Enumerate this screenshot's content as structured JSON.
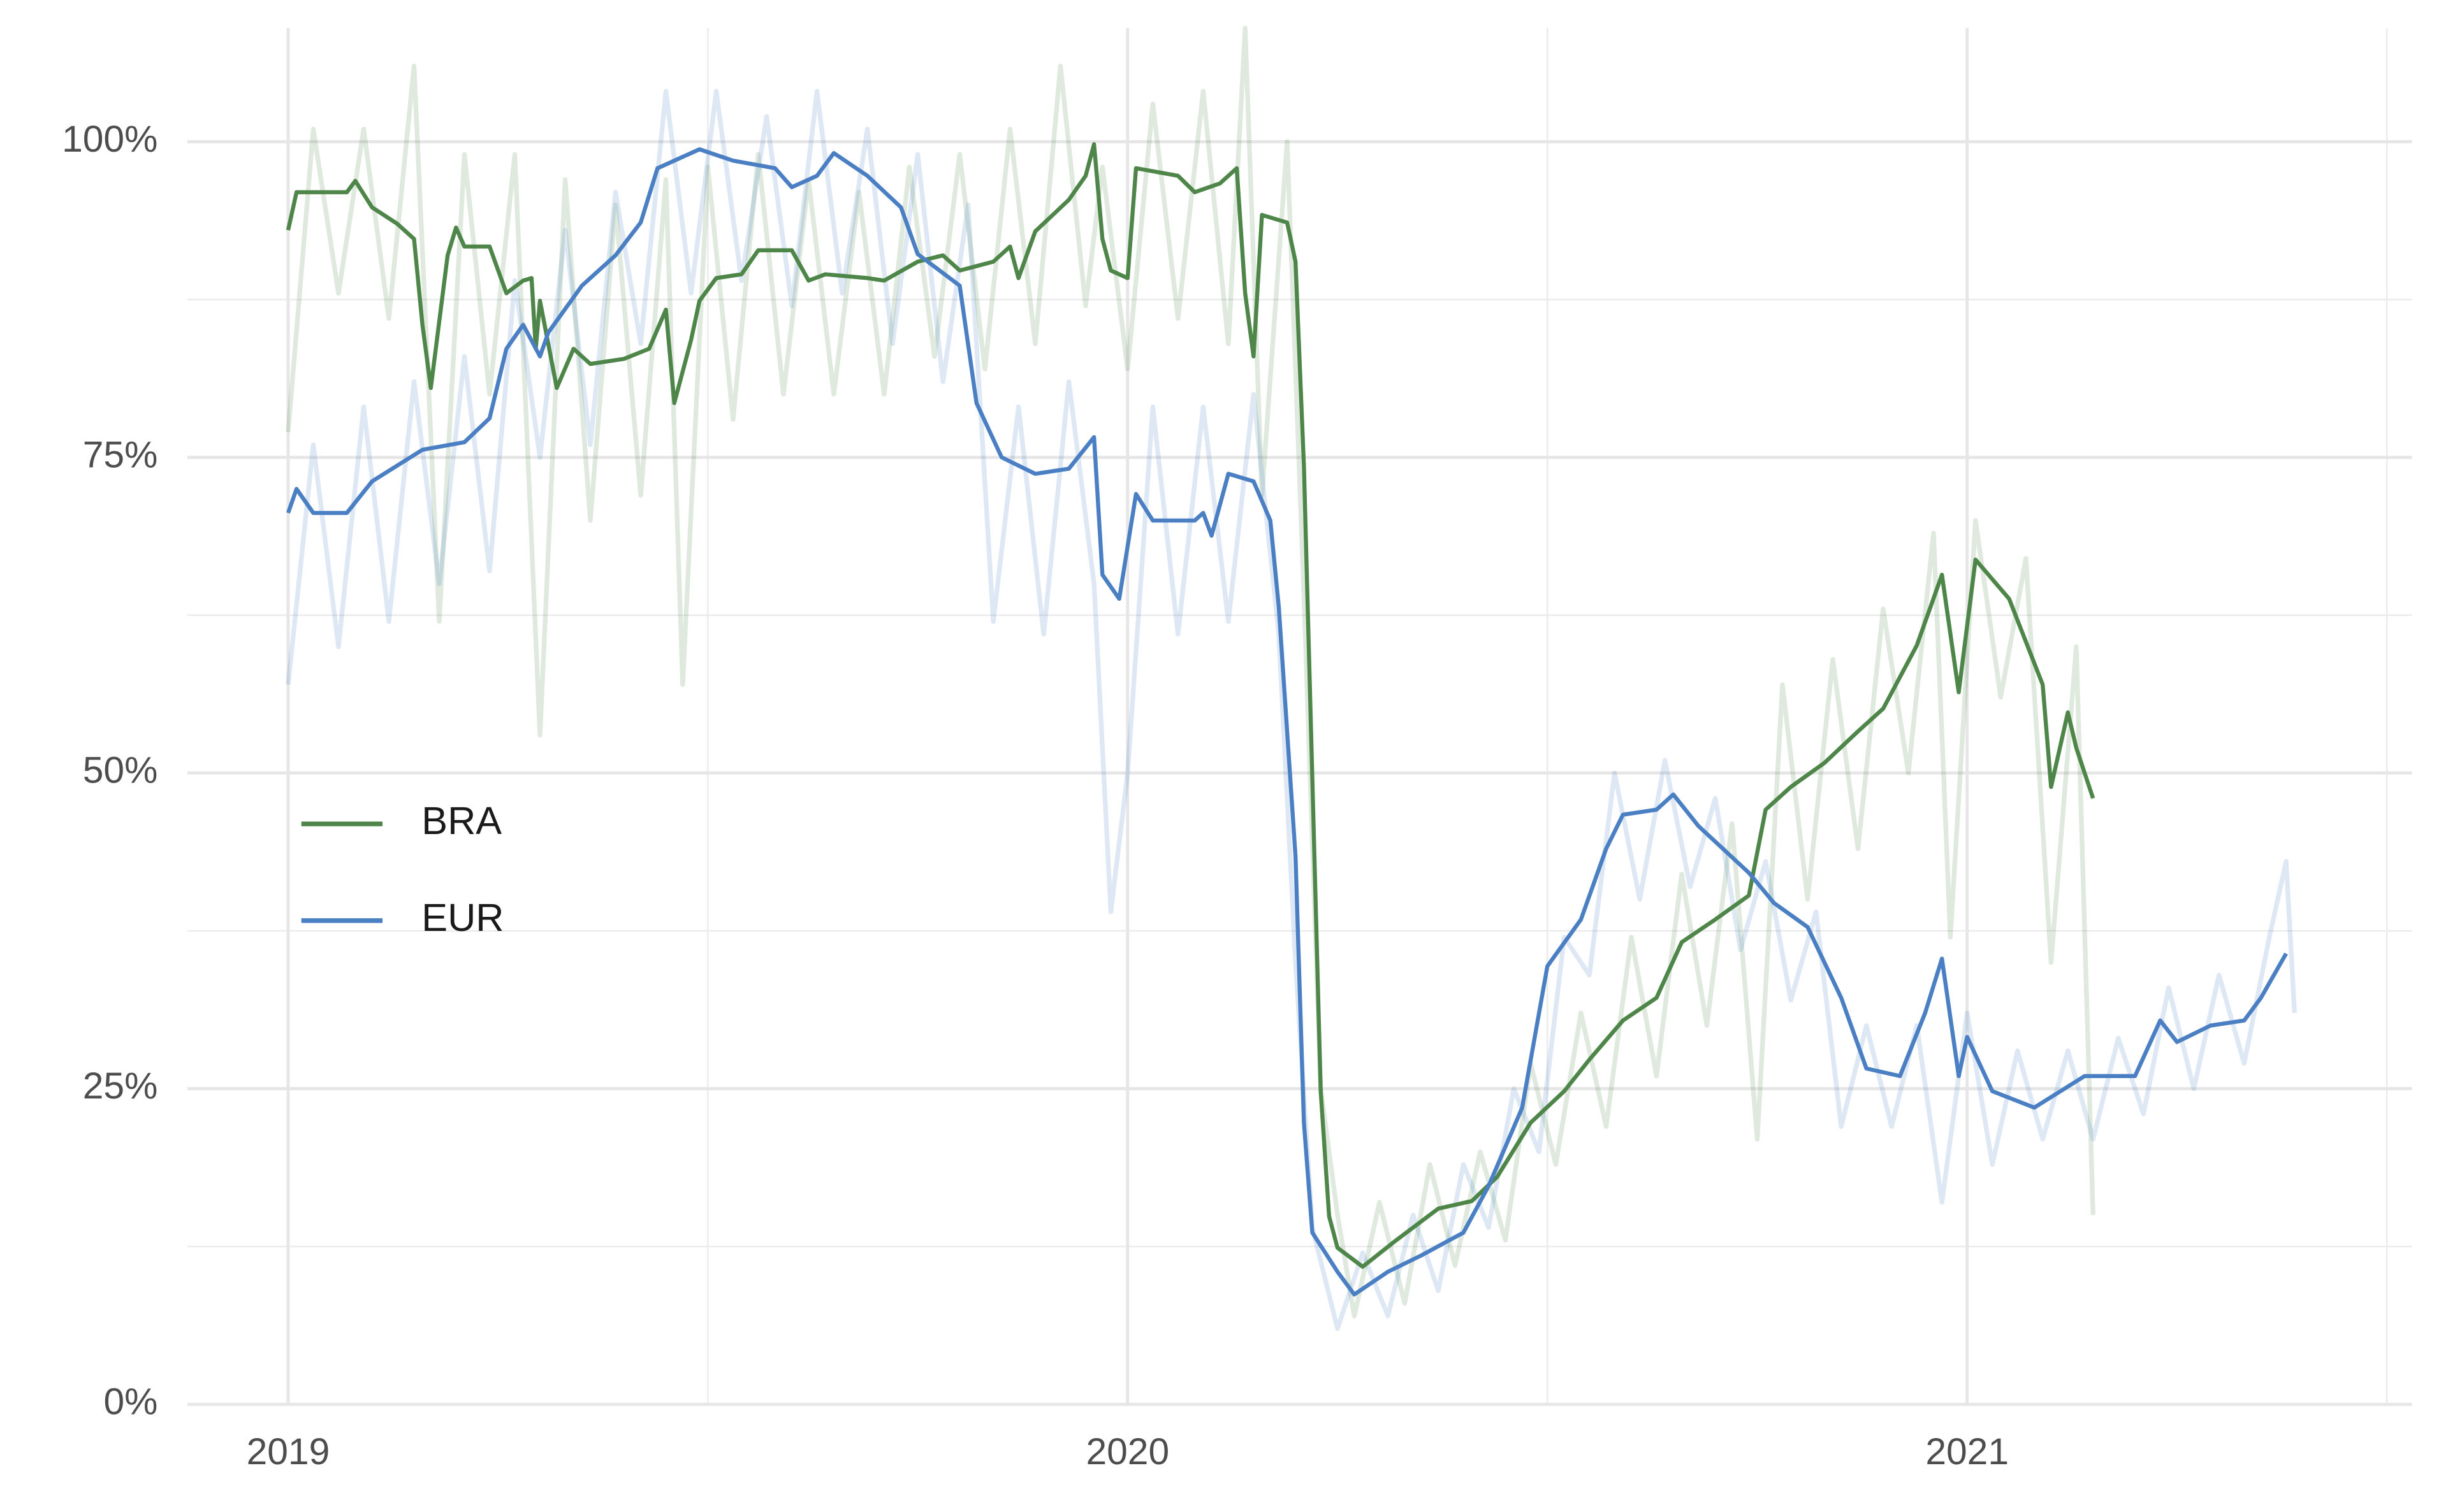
{
  "chart_data": {
    "type": "line",
    "xlim": [
      2018.88,
      2021.53
    ],
    "xticks": [
      2019,
      2020,
      2021
    ],
    "minor_xticks": [
      2019.5,
      2020.5,
      2021.5
    ],
    "ylim": [
      0,
      109
    ],
    "yticks": [
      {
        "value": 0,
        "label": "0%"
      },
      {
        "value": 25,
        "label": "25%"
      },
      {
        "value": 50,
        "label": "50%"
      },
      {
        "value": 75,
        "label": "75%"
      },
      {
        "value": 100,
        "label": "100%"
      }
    ],
    "minor_yticks": [
      12.5,
      37.5,
      62.5,
      87.5
    ],
    "grid": true,
    "legend": "left",
    "series": [
      {
        "name": "BRA",
        "color": "#4e8548",
        "x": [
          2019.0,
          2019.01,
          2019.07,
          2019.08,
          2019.1,
          2019.13,
          2019.15,
          2019.16,
          2019.17,
          2019.19,
          2019.2,
          2019.21,
          2019.24,
          2019.26,
          2019.28,
          2019.29,
          2019.295,
          2019.3,
          2019.32,
          2019.34,
          2019.36,
          2019.4,
          2019.43,
          2019.45,
          2019.46,
          2019.48,
          2019.49,
          2019.51,
          2019.54,
          2019.56,
          2019.6,
          2019.62,
          2019.64,
          2019.69,
          2019.71,
          2019.75,
          2019.78,
          2019.8,
          2019.84,
          2019.86,
          2019.87,
          2019.89,
          2019.93,
          2019.95,
          2019.96,
          2019.97,
          2019.98,
          2020.0,
          2020.01,
          2020.06,
          2020.08,
          2020.11,
          2020.13,
          2020.14,
          2020.15,
          2020.16,
          2020.19,
          2020.2,
          2020.21,
          2020.22,
          2020.23,
          2020.24,
          2020.25,
          2020.28,
          2020.32,
          2020.37,
          2020.41,
          2020.44,
          2020.48,
          2020.52,
          2020.55,
          2020.59,
          2020.63,
          2020.66,
          2020.7,
          2020.74,
          2020.76,
          2020.79,
          2020.83,
          2020.87,
          2020.9,
          2020.94,
          2020.97,
          2020.99,
          2021.01,
          2021.05,
          2021.09,
          2021.1,
          2021.12,
          2021.13,
          2021.15
        ],
        "values": [
          93,
          96,
          96,
          96.9,
          94.8,
          93.5,
          92.3,
          85.5,
          80.5,
          91,
          93.2,
          91.7,
          91.7,
          88,
          89,
          89.2,
          83.6,
          87.4,
          80.5,
          83.6,
          82.4,
          82.8,
          83.6,
          86.7,
          79.3,
          84.3,
          87.4,
          89.2,
          89.5,
          91.4,
          91.4,
          89,
          89.5,
          89.2,
          89,
          90.5,
          91,
          89.8,
          90.5,
          91.7,
          89.2,
          92.9,
          95.4,
          97.3,
          99.8,
          92.3,
          89.8,
          89.2,
          97.9,
          97.3,
          96,
          96.7,
          97.9,
          88,
          83,
          94.2,
          93.6,
          90.5,
          74.3,
          49.6,
          24.8,
          14.9,
          12.4,
          10.9,
          13,
          15.5,
          16.1,
          18,
          22.3,
          24.8,
          27.3,
          30.4,
          32.2,
          36.6,
          38.4,
          40.3,
          47.1,
          48.9,
          50.8,
          53.3,
          55.1,
          60.1,
          65.7,
          56.4,
          66.9,
          63.8,
          57,
          48.9,
          54.8,
          52,
          48
        ],
        "raw_x": [
          2019.0,
          2019.03,
          2019.06,
          2019.09,
          2019.12,
          2019.15,
          2019.18,
          2019.21,
          2019.24,
          2019.27,
          2019.3,
          2019.33,
          2019.36,
          2019.39,
          2019.42,
          2019.45,
          2019.47,
          2019.5,
          2019.53,
          2019.56,
          2019.59,
          2019.62,
          2019.65,
          2019.68,
          2019.71,
          2019.74,
          2019.77,
          2019.8,
          2019.83,
          2019.86,
          2019.89,
          2019.92,
          2019.95,
          2019.97,
          2020.0,
          2020.03,
          2020.06,
          2020.09,
          2020.12,
          2020.14,
          2020.16,
          2020.19,
          2020.21,
          2020.23,
          2020.25,
          2020.27,
          2020.3,
          2020.33,
          2020.36,
          2020.39,
          2020.42,
          2020.45,
          2020.48,
          2020.51,
          2020.54,
          2020.57,
          2020.6,
          2020.63,
          2020.66,
          2020.69,
          2020.72,
          2020.75,
          2020.78,
          2020.81,
          2020.84,
          2020.87,
          2020.9,
          2020.93,
          2020.96,
          2020.98,
          2021.01,
          2021.04,
          2021.07,
          2021.1,
          2021.13,
          2021.15
        ],
        "raw_values": [
          77,
          101,
          88,
          101,
          86,
          106,
          62,
          99,
          80,
          99,
          53,
          97,
          70,
          95,
          72,
          97,
          57,
          98,
          78,
          99,
          80,
          97,
          80,
          96,
          80,
          98,
          83,
          99,
          82,
          101,
          84,
          106,
          87,
          98,
          82,
          103,
          86,
          104,
          84,
          109,
          72,
          100,
          64,
          25,
          15,
          7,
          16,
          8,
          19,
          11,
          20,
          13,
          27,
          19,
          31,
          22,
          37,
          26,
          42,
          30,
          46,
          21,
          57,
          40,
          59,
          44,
          63,
          50,
          69,
          37,
          70,
          56,
          67,
          35,
          60,
          15
        ]
      },
      {
        "name": "EUR",
        "color": "#4a7fc3",
        "x": [
          2019.0,
          2019.01,
          2019.03,
          2019.07,
          2019.1,
          2019.16,
          2019.21,
          2019.24,
          2019.26,
          2019.28,
          2019.3,
          2019.31,
          2019.35,
          2019.39,
          2019.42,
          2019.44,
          2019.49,
          2019.53,
          2019.58,
          2019.6,
          2019.63,
          2019.65,
          2019.69,
          2019.73,
          2019.75,
          2019.8,
          2019.82,
          2019.85,
          2019.89,
          2019.93,
          2019.96,
          2019.97,
          2019.99,
          2020.01,
          2020.03,
          2020.08,
          2020.09,
          2020.1,
          2020.12,
          2020.15,
          2020.17,
          2020.18,
          2020.2,
          2020.21,
          2020.22,
          2020.25,
          2020.27,
          2020.31,
          2020.35,
          2020.4,
          2020.43,
          2020.47,
          2020.5,
          2020.54,
          2020.57,
          2020.59,
          2020.63,
          2020.65,
          2020.68,
          2020.74,
          2020.77,
          2020.81,
          2020.85,
          2020.88,
          2020.92,
          2020.95,
          2020.97,
          2020.99,
          2021.0,
          2021.03,
          2021.08,
          2021.14,
          2021.2,
          2021.23,
          2021.25,
          2021.29,
          2021.33,
          2021.35,
          2021.38
        ],
        "values": [
          70.6,
          72.5,
          70.6,
          70.6,
          73.1,
          75.6,
          76.2,
          78.1,
          83.6,
          85.5,
          83,
          84.9,
          88.6,
          91,
          93.6,
          97.9,
          99.4,
          98.5,
          97.9,
          96.4,
          97.3,
          99.1,
          97.3,
          94.8,
          91.1,
          88.6,
          79.3,
          75,
          73.7,
          74.1,
          76.6,
          65.7,
          63.8,
          72.1,
          70,
          70,
          70.6,
          68.8,
          73.7,
          73.1,
          70,
          63.2,
          43.4,
          22.3,
          13.6,
          10.5,
          8.7,
          10.5,
          11.8,
          13.6,
          17.3,
          23.5,
          34.7,
          38.4,
          44,
          46.7,
          47.1,
          48.3,
          45.8,
          42.1,
          39.7,
          37.8,
          32.2,
          26.6,
          26,
          31,
          35.3,
          26,
          29.1,
          24.8,
          23.5,
          26,
          26,
          30.4,
          28.7,
          30,
          30.4,
          32.2,
          35.7
        ],
        "raw_x": [
          2019.0,
          2019.03,
          2019.06,
          2019.09,
          2019.12,
          2019.15,
          2019.18,
          2019.21,
          2019.24,
          2019.27,
          2019.3,
          2019.33,
          2019.36,
          2019.39,
          2019.42,
          2019.45,
          2019.48,
          2019.51,
          2019.54,
          2019.57,
          2019.6,
          2019.63,
          2019.66,
          2019.69,
          2019.72,
          2019.75,
          2019.78,
          2019.81,
          2019.84,
          2019.87,
          2019.9,
          2019.93,
          2019.96,
          2019.98,
          2020.0,
          2020.03,
          2020.06,
          2020.09,
          2020.12,
          2020.15,
          2020.18,
          2020.2,
          2020.22,
          2020.25,
          2020.28,
          2020.31,
          2020.34,
          2020.37,
          2020.4,
          2020.43,
          2020.46,
          2020.49,
          2020.52,
          2020.55,
          2020.58,
          2020.61,
          2020.64,
          2020.67,
          2020.7,
          2020.73,
          2020.76,
          2020.79,
          2020.82,
          2020.85,
          2020.88,
          2020.91,
          2020.94,
          2020.97,
          2021.0,
          2021.03,
          2021.06,
          2021.09,
          2021.12,
          2021.15,
          2021.18,
          2021.21,
          2021.24,
          2021.27,
          2021.3,
          2021.33,
          2021.36,
          2021.38,
          2021.39
        ],
        "raw_values": [
          57,
          76,
          60,
          79,
          62,
          81,
          65,
          83,
          66,
          89,
          75,
          93,
          76,
          96,
          84,
          104,
          88,
          104,
          89,
          102,
          87,
          104,
          88,
          101,
          84,
          99,
          81,
          95,
          62,
          79,
          61,
          81,
          65,
          39,
          50,
          79,
          61,
          79,
          62,
          80,
          61,
          35,
          14,
          6,
          12,
          7,
          15,
          9,
          19,
          14,
          25,
          20,
          37,
          34,
          50,
          40,
          51,
          41,
          48,
          36,
          43,
          32,
          39,
          22,
          30,
          22,
          30,
          16,
          31,
          19,
          28,
          21,
          28,
          21,
          29,
          23,
          33,
          25,
          34,
          27,
          37,
          43,
          31
        ]
      }
    ]
  }
}
